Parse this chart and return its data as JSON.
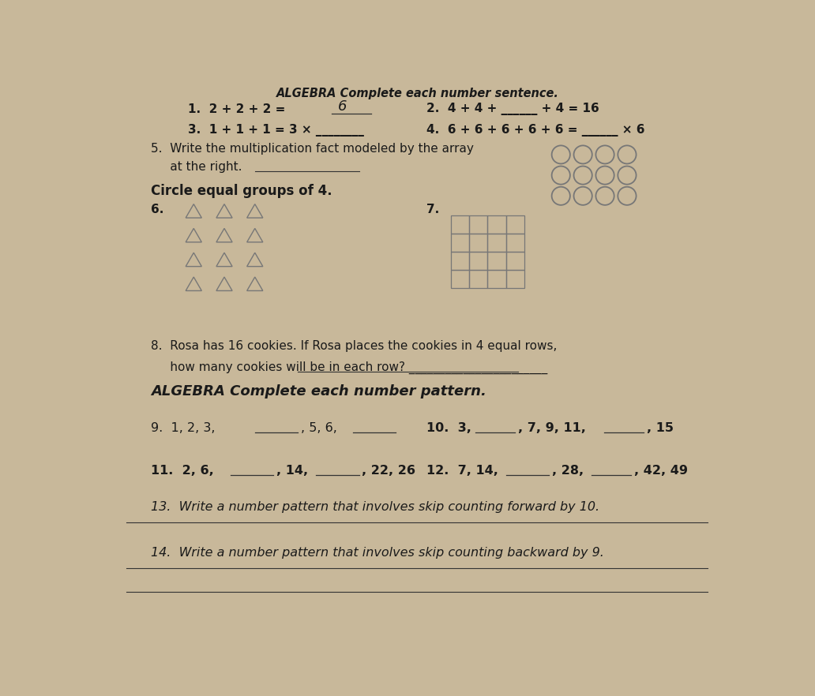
{
  "bg_color": "#c8b89a",
  "paper_color": "#f0ebe0",
  "title_text": "ALGEBRA Complete each number sentence.",
  "line1_left": "1.  2 + 2 + 2 = ",
  "line1_answer": "6",
  "line1_right": "2.  4 + 4 + _____ + 4 = 16",
  "line2_left": "3.  1 + 1 + 1 = 3 × _____",
  "line2_right": "4.  6 + 6 + 6 + 6 + 6 = _____ × 6",
  "line3a": "5.  Write the multiplication fact modeled by the array",
  "line3b": "     at the right. _______________________",
  "circle_header": "Circle equal groups of 4.",
  "q6": "6.",
  "q7": "7.",
  "q8a": "8.  Rosa has 16 cookies. If Rosa places the cookies in 4 equal rows,",
  "q8b": "     how many cookies will be in each row? _______________________",
  "algebra_header": "ALGEBRA Complete each number pattern.",
  "q9": "9.  1, 2, 3, _______, 5, 6, _______",
  "q10": "10.  3, _______, 7, 9, 11, _______, 15",
  "q11": "11.  2, 6, _______, 14, _______, 22, 26",
  "q12": "12.  7, 14, _______, 28, _______, 42, 49",
  "q13": "13.  Write a number pattern that involves skip counting forward by 10.",
  "q14": "14.  Write a number pattern that involves skip counting backward by 9.",
  "text_color": "#1a1a1a",
  "bold_color": "#111111",
  "shape_color": "#777777",
  "line_color": "#333333"
}
